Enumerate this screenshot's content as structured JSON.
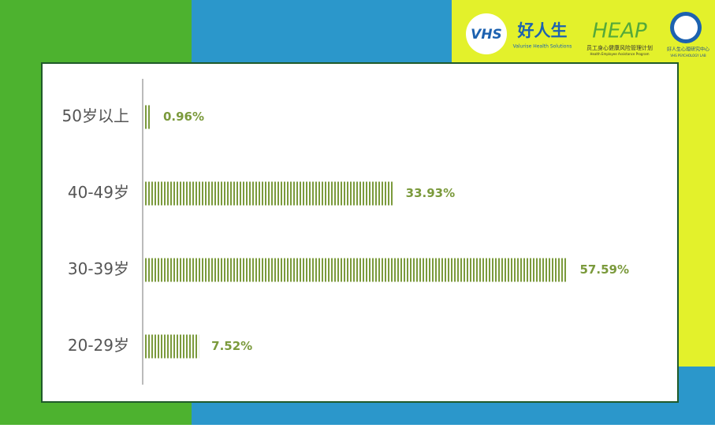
{
  "logos": {
    "vhs": "VHS",
    "vhs_name": "好人生",
    "vhs_sub": "Valurise Health Solutions",
    "heap": "HEAP",
    "heap_cn": "员工身心健康风险管理计划",
    "heap_en": "Health Employee Assistance Program",
    "lab_cn": "好人生心理研究中心",
    "lab_en": "VHS PSYCHOLOGY LAB"
  },
  "chart_data": {
    "type": "hbar",
    "categories": [
      "50岁以上",
      "40-49岁",
      "30-39岁",
      "20-29岁"
    ],
    "values": [
      0.96,
      33.93,
      57.59,
      7.52
    ],
    "value_labels": [
      "0.96%",
      "33.93%",
      "57.59%",
      "7.52%"
    ],
    "color": "#7b9a3c",
    "xlim": [
      0,
      72
    ]
  }
}
